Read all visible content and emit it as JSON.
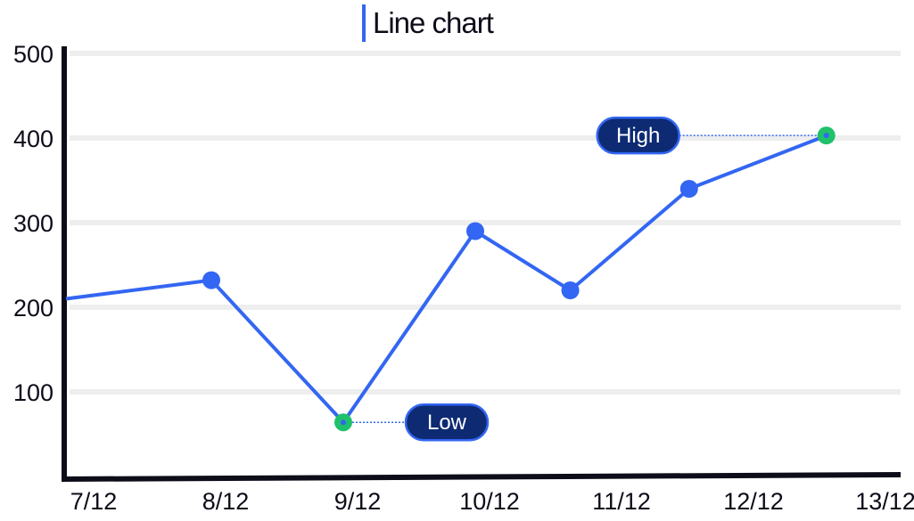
{
  "chart_data": {
    "type": "line",
    "title": "Line chart",
    "categories": [
      "7/12",
      "8/12",
      "9/12",
      "10/12",
      "11/12",
      "12/12",
      "13/12"
    ],
    "x_positions": [
      0.03,
      1,
      2,
      3,
      3.72,
      4.62,
      5.66
    ],
    "values": [
      210,
      232,
      64,
      290,
      220,
      340,
      403
    ],
    "y_ticks": [
      100,
      200,
      300,
      400,
      500
    ],
    "ylim": [
      0,
      500
    ],
    "grid": true,
    "annotations": [
      {
        "label": "Low",
        "point_index": 2,
        "side": "right"
      },
      {
        "label": "High",
        "point_index": 6,
        "side": "left"
      }
    ],
    "colors": {
      "line": "#3366f2",
      "marker": "#3366f2",
      "highlight_marker": "#1fc16b",
      "pill": "#0d2a73",
      "axis": "#0d0d1a",
      "grid": "#eeeeee"
    }
  }
}
